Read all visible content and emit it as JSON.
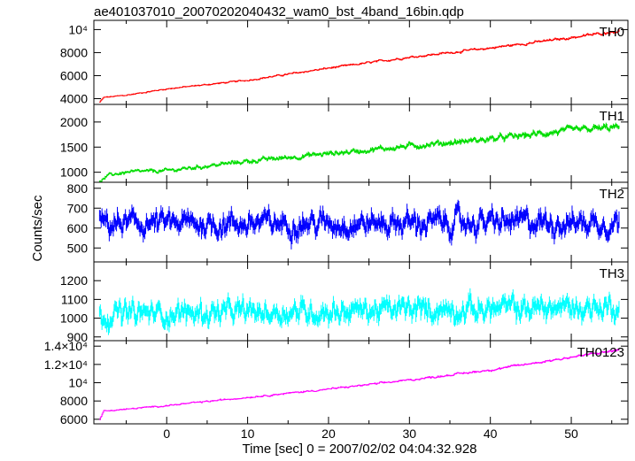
{
  "chart_data": {
    "type": "line",
    "title": "ae401037010_20070202040432_wam0_bst_4band_16bin.qdp",
    "xlabel": "Time [sec] 0 = 2007/02/02 04:04:32.928",
    "ylabel": "Counts/sec",
    "xlim": [
      -9,
      57
    ],
    "x_ticks": [
      0,
      10,
      20,
      30,
      40,
      50
    ],
    "x_tick_labels": [
      "0",
      "10",
      "20",
      "30",
      "40",
      "50"
    ],
    "x_start": -8.3,
    "x_end": 56,
    "panels": [
      {
        "name": "TH0",
        "color": "#ff0000",
        "ylim": [
          3500,
          10800
        ],
        "y_ticks": [
          4000,
          6000,
          8000,
          10000
        ],
        "y_tick_labels": [
          "4000",
          "6000",
          "8000",
          "10⁴"
        ],
        "trend": [
          [
            -8.3,
            3700
          ],
          [
            -7.8,
            4100
          ],
          [
            -5,
            4300
          ],
          [
            0,
            4850
          ],
          [
            10,
            5600
          ],
          [
            20,
            6650
          ],
          [
            30,
            7600
          ],
          [
            40,
            8400
          ],
          [
            50,
            9300
          ],
          [
            56,
            9900
          ]
        ],
        "noise": 0.012
      },
      {
        "name": "TH1",
        "color": "#00dd00",
        "ylim": [
          800,
          2350
        ],
        "y_ticks": [
          1000,
          1500,
          2000
        ],
        "y_tick_labels": [
          "1000",
          "1500",
          "2000"
        ],
        "trend": [
          [
            -8.3,
            820
          ],
          [
            -7,
            950
          ],
          [
            -5,
            1000
          ],
          [
            0,
            1030
          ],
          [
            10,
            1220
          ],
          [
            20,
            1370
          ],
          [
            30,
            1520
          ],
          [
            40,
            1660
          ],
          [
            50,
            1830
          ],
          [
            56,
            1900
          ]
        ],
        "noise": 0.035
      },
      {
        "name": "TH2",
        "color": "#0000ff",
        "ylim": [
          430,
          830
        ],
        "y_ticks": [
          500,
          600,
          700,
          800
        ],
        "y_tick_labels": [
          "500",
          "600",
          "700",
          "800"
        ],
        "trend": [
          [
            -8.3,
            620
          ],
          [
            56,
            630
          ]
        ],
        "noise": 0.09
      },
      {
        "name": "TH3",
        "color": "#00ffff",
        "ylim": [
          880,
          1300
        ],
        "y_ticks": [
          900,
          1000,
          1100,
          1200
        ],
        "y_tick_labels": [
          "900",
          "1000",
          "1100",
          "1200"
        ],
        "trend": [
          [
            -8.3,
            1020
          ],
          [
            56,
            1060
          ]
        ],
        "noise": 0.055
      },
      {
        "name": "TH0123",
        "color": "#ff00ff",
        "ylim": [
          5500,
          14600
        ],
        "y_ticks": [
          6000,
          8000,
          10000,
          12000,
          14000
        ],
        "y_tick_labels": [
          "6000",
          "8000",
          "10⁴",
          "1.2×10⁴",
          "1.4×10⁴"
        ],
        "trend": [
          [
            -8.3,
            6000
          ],
          [
            -7.8,
            6900
          ],
          [
            -5,
            7100
          ],
          [
            0,
            7500
          ],
          [
            10,
            8400
          ],
          [
            20,
            9300
          ],
          [
            30,
            10300
          ],
          [
            40,
            11400
          ],
          [
            50,
            12800
          ],
          [
            56,
            13600
          ]
        ],
        "noise": 0.01
      }
    ]
  }
}
